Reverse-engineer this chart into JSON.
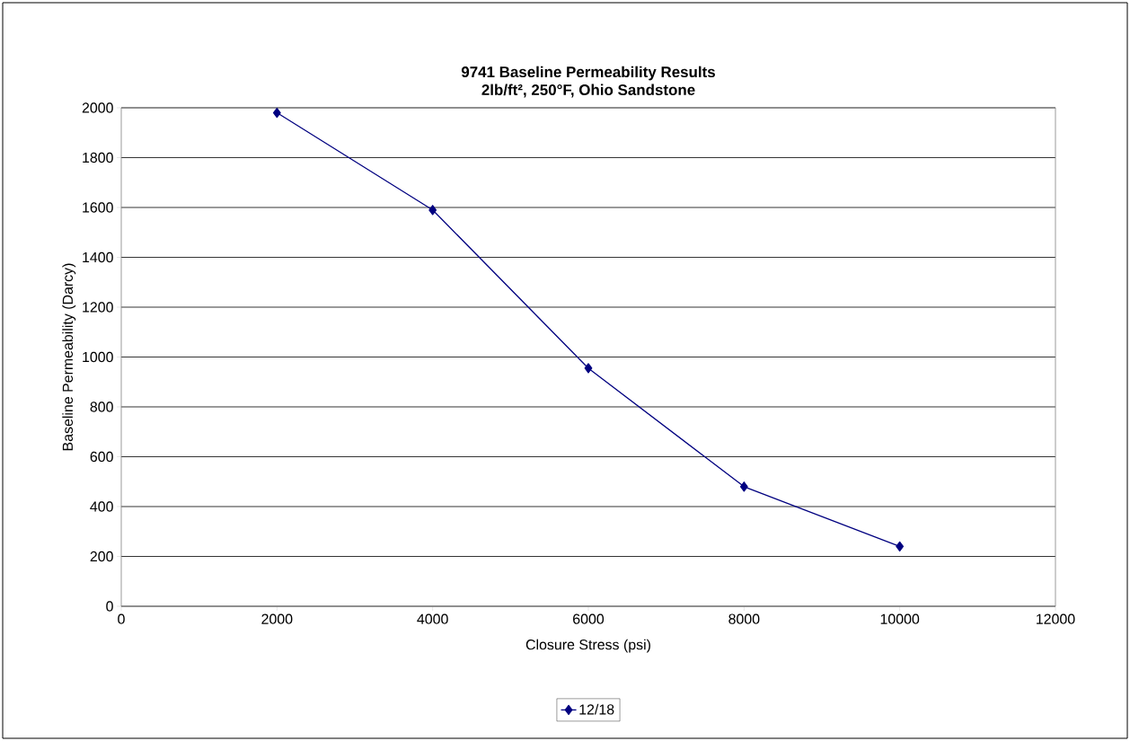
{
  "chart_data": {
    "type": "line",
    "title": "9741 Baseline Permeability Results",
    "subtitle": "2lb/ft², 250°F, Ohio Sandstone",
    "xlabel": "Closure Stress (psi)",
    "ylabel": "Baseline Permeability (Darcy)",
    "x": [
      2000,
      4000,
      6000,
      8000,
      10000
    ],
    "series": [
      {
        "name": "12/18",
        "color": "#000080",
        "values": [
          1980,
          1590,
          955,
          480,
          240
        ]
      }
    ],
    "xlim": [
      0,
      12000
    ],
    "xticks": [
      0,
      2000,
      4000,
      6000,
      8000,
      10000,
      12000
    ],
    "ylim": [
      0,
      2000
    ],
    "yticks": [
      0,
      200,
      400,
      600,
      800,
      1000,
      1200,
      1400,
      1600,
      1800,
      2000
    ],
    "grid": "y",
    "legend": "bottom",
    "marker": "diamond",
    "line_style": "solid"
  }
}
